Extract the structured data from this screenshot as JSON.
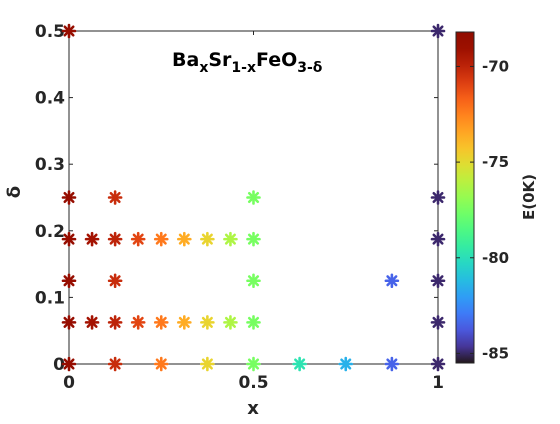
{
  "chart_data": {
    "type": "scatter",
    "title": "BaxSr1-xFeO3-δ",
    "title_parts": {
      "a": "Ba",
      "sub_x": "x",
      "b": "Sr",
      "sub_1x": "1-x",
      "c": "FeO",
      "sub_3d": "3-δ"
    },
    "xlabel": "x",
    "ylabel": "δ",
    "xlim": [
      0,
      1
    ],
    "ylim": [
      0,
      0.5
    ],
    "xticks": [
      {
        "value": 0,
        "label": "0"
      },
      {
        "value": 0.5,
        "label": "0.5"
      },
      {
        "value": 1,
        "label": "1"
      }
    ],
    "yticks": [
      {
        "value": 0,
        "label": "0"
      },
      {
        "value": 0.1,
        "label": "0.1"
      },
      {
        "value": 0.2,
        "label": "0.2"
      },
      {
        "value": 0.3,
        "label": "0.3"
      },
      {
        "value": 0.4,
        "label": "0.4"
      },
      {
        "value": 0.5,
        "label": "0.5"
      }
    ],
    "colorbar": {
      "label": "E(0K)",
      "range": [
        -85.5,
        -68.2
      ],
      "ticks": [
        {
          "value": -70,
          "label": "-70"
        },
        {
          "value": -75,
          "label": "-75"
        },
        {
          "value": -80,
          "label": "-80"
        },
        {
          "value": -85,
          "label": "-85"
        }
      ],
      "colormap": "turbo"
    },
    "marker": "asterisk",
    "points": [
      {
        "x": 0,
        "y": 0.5,
        "e": -68.8
      },
      {
        "x": 1,
        "y": 0.5,
        "e": -85.0
      },
      {
        "x": 0,
        "y": 0.25,
        "e": -68.8
      },
      {
        "x": 0.125,
        "y": 0.25,
        "e": -70.3
      },
      {
        "x": 0.5,
        "y": 0.25,
        "e": -77.5
      },
      {
        "x": 1,
        "y": 0.25,
        "e": -85.0
      },
      {
        "x": 0,
        "y": 0.1875,
        "e": -68.8
      },
      {
        "x": 0.0625,
        "y": 0.1875,
        "e": -69.3
      },
      {
        "x": 0.125,
        "y": 0.1875,
        "e": -70.0
      },
      {
        "x": 0.1875,
        "y": 0.1875,
        "e": -71.0
      },
      {
        "x": 0.25,
        "y": 0.1875,
        "e": -72.3
      },
      {
        "x": 0.3125,
        "y": 0.1875,
        "e": -73.6
      },
      {
        "x": 0.375,
        "y": 0.1875,
        "e": -74.8
      },
      {
        "x": 0.4375,
        "y": 0.1875,
        "e": -76.3
      },
      {
        "x": 0.5,
        "y": 0.1875,
        "e": -77.5
      },
      {
        "x": 1,
        "y": 0.1875,
        "e": -85.0
      },
      {
        "x": 0,
        "y": 0.125,
        "e": -68.8
      },
      {
        "x": 0.125,
        "y": 0.125,
        "e": -70.3
      },
      {
        "x": 0.5,
        "y": 0.125,
        "e": -77.5
      },
      {
        "x": 0.875,
        "y": 0.125,
        "e": -83.5
      },
      {
        "x": 1,
        "y": 0.125,
        "e": -85.0
      },
      {
        "x": 0,
        "y": 0.0625,
        "e": -68.8
      },
      {
        "x": 0.0625,
        "y": 0.0625,
        "e": -69.3
      },
      {
        "x": 0.125,
        "y": 0.0625,
        "e": -70.0
      },
      {
        "x": 0.1875,
        "y": 0.0625,
        "e": -71.0
      },
      {
        "x": 0.25,
        "y": 0.0625,
        "e": -72.3
      },
      {
        "x": 0.3125,
        "y": 0.0625,
        "e": -73.6
      },
      {
        "x": 0.375,
        "y": 0.0625,
        "e": -74.8
      },
      {
        "x": 0.4375,
        "y": 0.0625,
        "e": -76.3
      },
      {
        "x": 0.5,
        "y": 0.0625,
        "e": -77.5
      },
      {
        "x": 1,
        "y": 0.0625,
        "e": -85.0
      },
      {
        "x": 0,
        "y": 0,
        "e": -68.8
      },
      {
        "x": 0.125,
        "y": 0,
        "e": -70.3
      },
      {
        "x": 0.25,
        "y": 0,
        "e": -72.3
      },
      {
        "x": 0.375,
        "y": 0,
        "e": -74.8
      },
      {
        "x": 0.5,
        "y": 0,
        "e": -77.5
      },
      {
        "x": 0.625,
        "y": 0,
        "e": -79.8
      },
      {
        "x": 0.75,
        "y": 0,
        "e": -81.5
      },
      {
        "x": 0.875,
        "y": 0,
        "e": -83.5
      },
      {
        "x": 1,
        "y": 0,
        "e": -85.0
      }
    ]
  }
}
